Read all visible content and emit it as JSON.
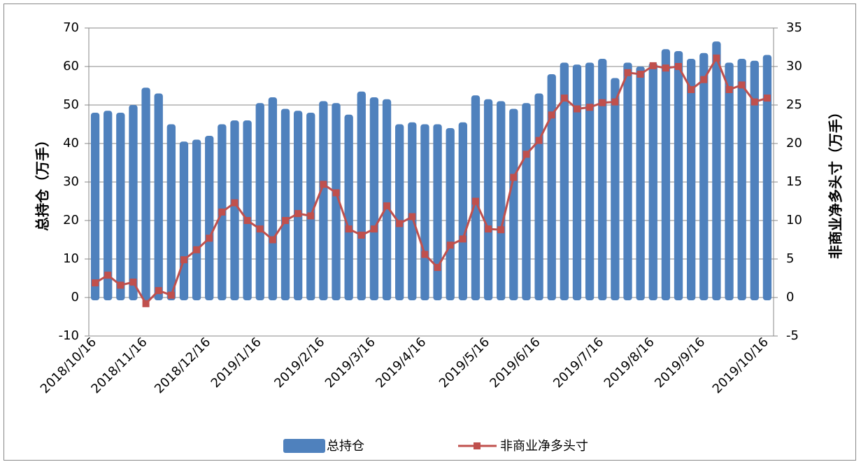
{
  "chart_data": {
    "type": "bar",
    "y_label": "总持仓（万手）",
    "y2_label": "非商业净多头寸（万手）",
    "categories": [
      "2018/10/16",
      null,
      null,
      null,
      "2018/11/16",
      null,
      null,
      null,
      null,
      "2018/12/16",
      null,
      null,
      null,
      "2019/1/16",
      null,
      null,
      null,
      null,
      "2019/2/16",
      null,
      null,
      null,
      "2019/3/16",
      null,
      null,
      null,
      "2019/4/16",
      null,
      null,
      null,
      null,
      "2019/5/16",
      null,
      null,
      null,
      "2019/6/16",
      null,
      null,
      null,
      null,
      "2019/7/16",
      null,
      null,
      null,
      "2019/8/16",
      null,
      null,
      null,
      "2019/9/16",
      null,
      null,
      null,
      null,
      "2019/10/16"
    ],
    "series": [
      {
        "name": "总持仓",
        "type": "bar",
        "color": "#4f81bd",
        "values": [
          48,
          48.5,
          48,
          50,
          54.5,
          53,
          45,
          40.5,
          41,
          42,
          45,
          46,
          46,
          50.5,
          52,
          49,
          48.5,
          48,
          51,
          50.5,
          47.5,
          53.5,
          52,
          51.5,
          45,
          45.5,
          45,
          45,
          44,
          45.5,
          52.5,
          51.5,
          51,
          49,
          50.5,
          53,
          58,
          61,
          60.5,
          61,
          62,
          57,
          61,
          60,
          61,
          64.5,
          64,
          62,
          63.5,
          66.5,
          61,
          62,
          61.5,
          63
        ]
      },
      {
        "name": "非商业净多头寸",
        "type": "line",
        "axis": "y2",
        "color": "#c0504d",
        "values": [
          1.9,
          2.9,
          1.6,
          2.0,
          -0.8,
          0.9,
          0.3,
          4.9,
          6.2,
          7.7,
          11.1,
          12.3,
          10.0,
          8.9,
          7.5,
          10.0,
          10.9,
          10.6,
          14.7,
          13.6,
          8.9,
          8.1,
          8.9,
          11.9,
          9.6,
          10.5,
          5.6,
          3.9,
          6.8,
          7.6,
          12.5,
          8.9,
          8.8,
          15.6,
          18.6,
          20.4,
          23.7,
          25.9,
          24.5,
          24.7,
          25.3,
          25.4,
          29.2,
          29.0,
          30.1,
          29.8,
          30.0,
          27.0,
          28.3,
          31.1,
          27.0,
          27.6,
          25.4,
          25.9
        ]
      }
    ],
    "ylim": [
      -10,
      70
    ],
    "yticks": [
      -10,
      0,
      10,
      20,
      30,
      40,
      50,
      60,
      70
    ],
    "y2lim": [
      -5,
      35
    ],
    "y2ticks": [
      -5,
      0,
      5,
      10,
      15,
      20,
      25,
      30,
      35
    ],
    "grid": true
  }
}
